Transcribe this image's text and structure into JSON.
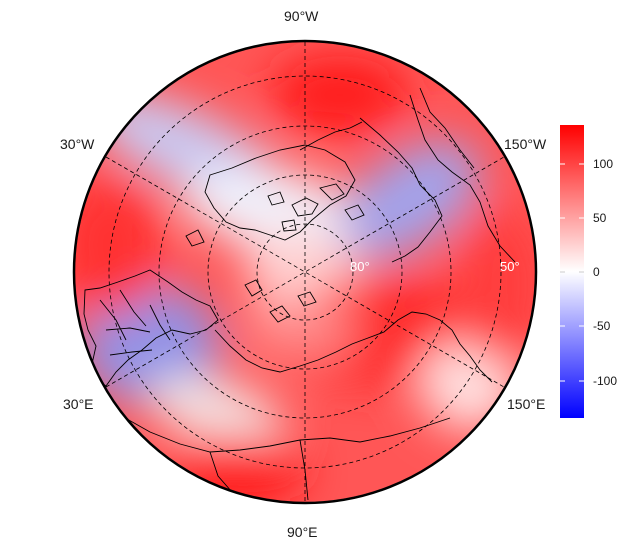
{
  "map": {
    "projection": "north-polar-stereographic",
    "longitude_labels": {
      "top": "90°W",
      "bottom": "90°E",
      "upper_left": "30°W",
      "lower_left": "30°E",
      "upper_right": "150°W",
      "lower_right": "150°E"
    },
    "latitude_labels": {
      "inner": "80°",
      "outer": "50°"
    },
    "graticule_style": "dashed"
  },
  "colorbar": {
    "ticks": [
      "100",
      "50",
      "0",
      "-50",
      "-100"
    ],
    "range": [
      -130,
      130
    ],
    "colors": {
      "high": "#ff0000",
      "mid": "#ffffff",
      "low": "#0000ff"
    }
  }
}
